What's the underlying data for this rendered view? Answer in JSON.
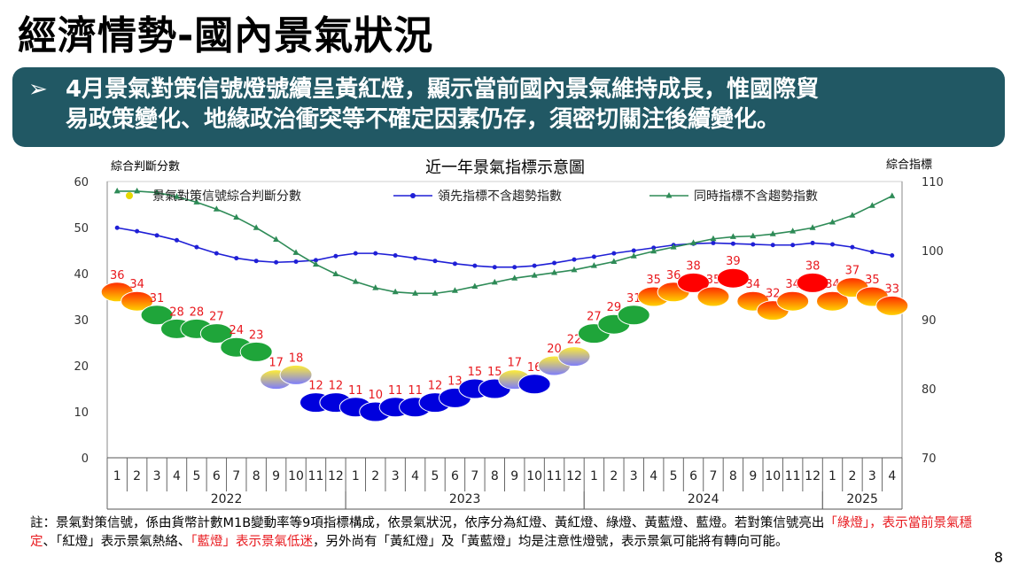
{
  "title": "經濟情勢-國內景氣狀況",
  "banner": {
    "arrow": "➢",
    "line1": "4月景氣對策信號燈號續呈黃紅燈，顯示當前國內景氣維持成長，惟國際貿",
    "line2": "易政策變化、地緣政治衝突等不確定因素仍存，須密切關注後續變化。"
  },
  "footnote": {
    "part1": "註：景氣對策信號，係由貨幣計數M1B變動率等9項指標構成，依景氣狀況，依序分為紅燈、黃紅燈、綠燈、黃藍燈、藍燈。若對策信號亮出",
    "part2": "「綠燈」，表示當前景氣穩定",
    "part3": "、「紅燈」表示景氣熱絡、",
    "part4": "「藍燈」表示景氣低迷",
    "part5": "，另外尚有「黃紅燈」及「黃藍燈」均是注意性燈號，表示景氣可能將有轉向可能。"
  },
  "page_number": "8",
  "colors": {
    "banner_bg": "#215864",
    "red_light": "#ff0000",
    "yellow_red_light": "#ffcc00",
    "green_light": "#1fa53a",
    "yellow_blue_light": "#9999ff",
    "blue_light": "#0000dd",
    "leading_line": "#1f1fd6",
    "coincident_line": "#2e8b57",
    "label_red": "#e8191e"
  },
  "chart_data": {
    "type": "line",
    "title": "近一年景氣指標示意圖",
    "ylabel_left": "綜合判斷分數",
    "ylabel_right": "綜合指標",
    "ylim_left": [
      0,
      60
    ],
    "ylim_right": [
      70,
      110
    ],
    "yticks_left": [
      "0",
      "10",
      "20",
      "30",
      "40",
      "50",
      "60"
    ],
    "yticks_right": [
      "70",
      "80",
      "90",
      "100",
      "110"
    ],
    "months": [
      "1",
      "2",
      "3",
      "4",
      "5",
      "6",
      "7",
      "8",
      "9",
      "10",
      "11",
      "12",
      "1",
      "2",
      "3",
      "4",
      "5",
      "6",
      "7",
      "8",
      "9",
      "10",
      "11",
      "12",
      "1",
      "2",
      "3",
      "4",
      "5",
      "6",
      "7",
      "8",
      "9",
      "10",
      "11",
      "12",
      "1",
      "2",
      "3",
      "4"
    ],
    "years": [
      {
        "label": "2022",
        "start": 0,
        "end": 11
      },
      {
        "label": "2023",
        "start": 12,
        "end": 23
      },
      {
        "label": "2024",
        "start": 24,
        "end": 35
      },
      {
        "label": "2025",
        "start": 36,
        "end": 39
      }
    ],
    "legend": [
      "景氣對策信號綜合判斷分數",
      "領先指標不含趨勢指數",
      "同時指標不含趨勢指數"
    ],
    "legend_position": "top",
    "signal_scores": [
      36,
      34,
      31,
      28,
      28,
      27,
      24,
      23,
      17,
      18,
      12,
      12,
      11,
      10,
      11,
      11,
      12,
      13,
      15,
      15,
      17,
      16,
      20,
      22,
      27,
      29,
      31,
      35,
      36,
      38,
      35,
      39,
      34,
      32,
      34,
      38,
      34,
      37,
      35,
      33
    ],
    "signal_types": [
      "yr",
      "yr",
      "g",
      "g",
      "g",
      "g",
      "g",
      "g",
      "yb",
      "yb",
      "b",
      "b",
      "b",
      "b",
      "b",
      "b",
      "b",
      "b",
      "b",
      "b",
      "yb",
      "b",
      "yb",
      "yb",
      "g",
      "g",
      "g",
      "yr",
      "yr",
      "r",
      "yr",
      "r",
      "yr",
      "yr",
      "yr",
      "r",
      "yr",
      "yr",
      "yr",
      "yr"
    ],
    "series": [
      {
        "name": "領先指標不含趨勢指數",
        "values": [
          103.3,
          102.8,
          102.2,
          101.5,
          100.5,
          99.6,
          98.9,
          98.5,
          98.3,
          98.4,
          98.6,
          99.2,
          99.6,
          99.6,
          99.3,
          98.9,
          98.5,
          98.1,
          97.8,
          97.6,
          97.6,
          97.8,
          98.2,
          98.7,
          99.1,
          99.6,
          100.0,
          100.4,
          100.8,
          101.0,
          101.1,
          101.0,
          100.9,
          100.8,
          100.8,
          101.1,
          100.9,
          100.5,
          99.8,
          99.3
        ]
      },
      {
        "name": "同時指標不含趨勢指數",
        "values": [
          108.6,
          108.6,
          108.4,
          107.8,
          107.0,
          106.0,
          104.8,
          103.3,
          101.6,
          99.7,
          98.0,
          96.6,
          95.5,
          94.6,
          94.0,
          93.8,
          93.8,
          94.2,
          94.8,
          95.4,
          96.0,
          96.4,
          96.8,
          97.2,
          97.8,
          98.4,
          99.2,
          99.9,
          100.5,
          101.1,
          101.7,
          102.0,
          102.1,
          102.4,
          102.8,
          103.3,
          104.1,
          105.1,
          106.5,
          107.9
        ]
      }
    ]
  }
}
